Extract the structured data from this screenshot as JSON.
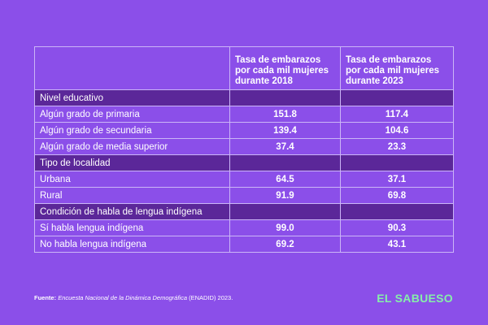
{
  "table": {
    "headers": [
      "Tasa de embarazos por cada mil mujeres durante 2018",
      "Tasa de embarazos por cada mil mujeres durante 2023"
    ],
    "sections": [
      {
        "title": "Nivel educativo",
        "rows": [
          [
            "Algún grado de primaria",
            "151.8",
            "117.4"
          ],
          [
            "Algún grado de secundaria",
            "139.4",
            "104.6"
          ],
          [
            "Algún grado de media superior",
            "37.4",
            "23.3"
          ]
        ]
      },
      {
        "title": "Tipo de localidad",
        "rows": [
          [
            "Urbana",
            "64.5",
            "37.1"
          ],
          [
            "Rural",
            "91.9",
            "69.8"
          ]
        ]
      },
      {
        "title": "Condición de habla de lengua indígena",
        "rows": [
          [
            "Sí habla lengua indígena",
            "99.0",
            "90.3"
          ],
          [
            "No habla lengua indígena",
            "69.2",
            "43.1"
          ]
        ]
      }
    ]
  },
  "footer": {
    "source_label": "Fuente:",
    "source_title": "Encuesta Nacional de la Dinámica Demográfica",
    "source_suffix": " (ENADID) 2023.",
    "brand": "EL SABUESO"
  }
}
